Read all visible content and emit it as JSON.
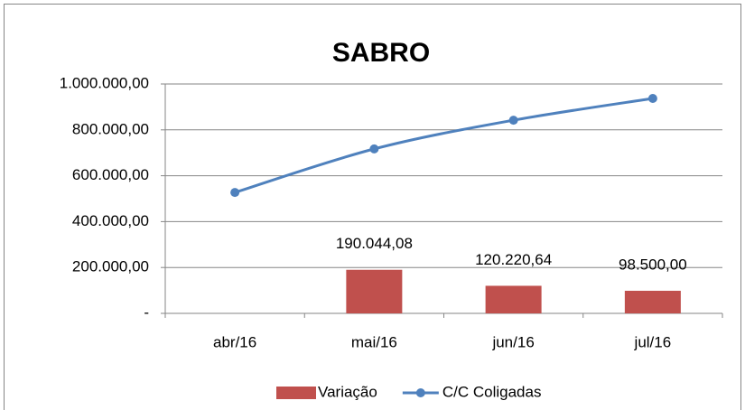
{
  "chart_data": {
    "type": "bar",
    "title": "SABRO",
    "categories": [
      "abr/16",
      "mai/16",
      "jun/16",
      "jul/16"
    ],
    "series": [
      {
        "name": "Variação",
        "type": "bar",
        "color": "#c0504d",
        "values": [
          null,
          190044.08,
          120220.64,
          98500
        ],
        "value_labels": [
          null,
          "190.044,08",
          "120.220,64",
          "98.500,00"
        ]
      },
      {
        "name": "C/C Coligadas",
        "type": "line",
        "color": "#4f81bd",
        "values": [
          527000,
          717000,
          842000,
          937000
        ]
      }
    ],
    "ylim": [
      0,
      1000000
    ],
    "yticks": [
      {
        "value": 0,
        "label": "-"
      },
      {
        "value": 200000,
        "label": "200.000,00"
      },
      {
        "value": 400000,
        "label": "400.000,00"
      },
      {
        "value": 600000,
        "label": "600.000,00"
      },
      {
        "value": 800000,
        "label": "800.000,00"
      },
      {
        "value": 1000000,
        "label": "1.000.000,00"
      }
    ],
    "grid": true,
    "legend": "bottom"
  }
}
